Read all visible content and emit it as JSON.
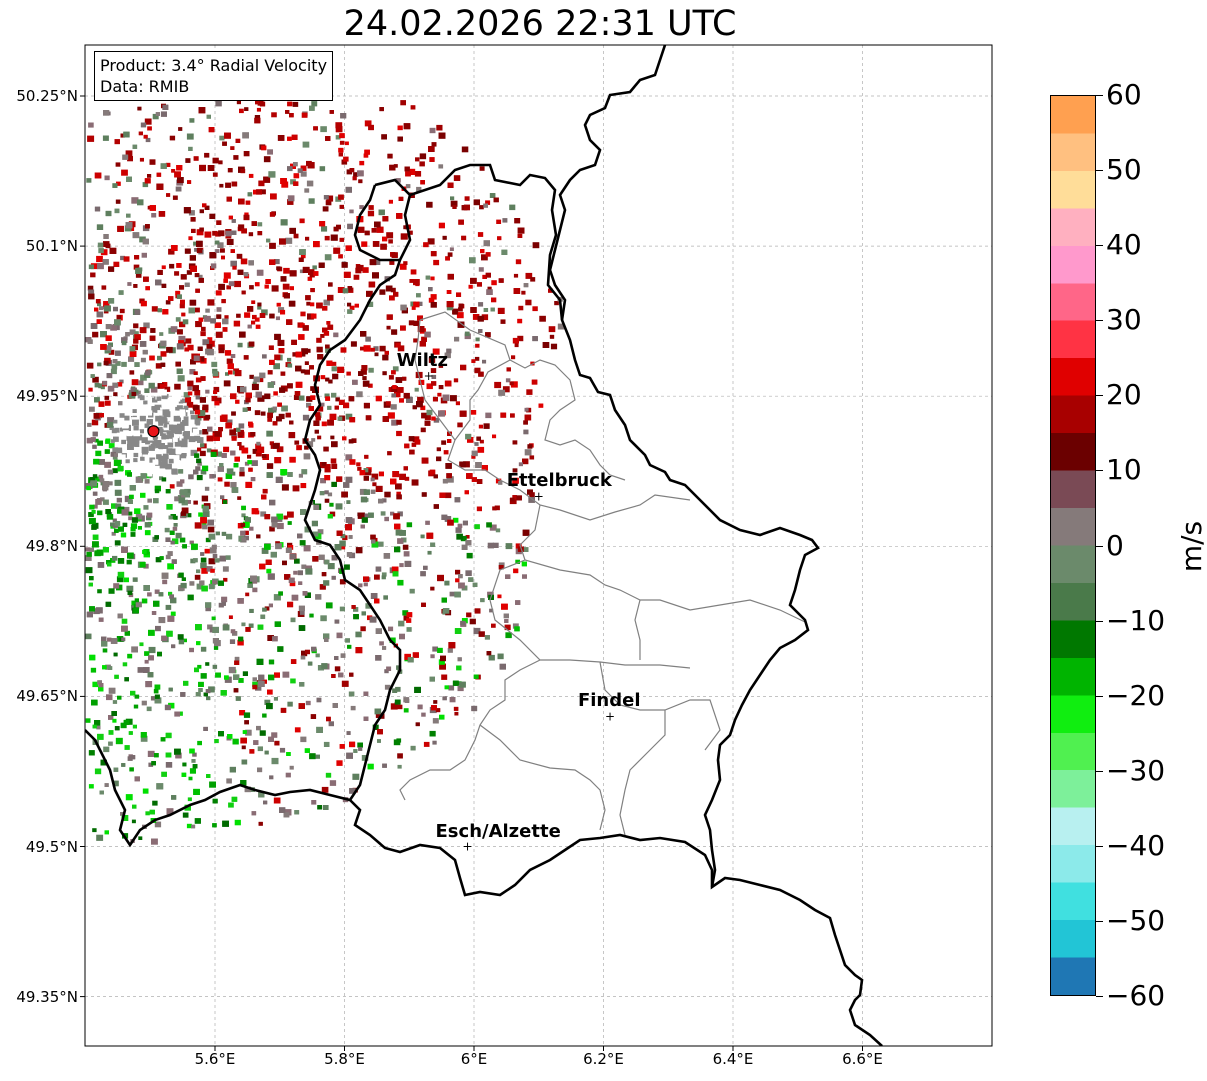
{
  "title": "24.02.2026 22:31 UTC",
  "info": {
    "product": "Product: 3.4° Radial Velocity",
    "data": "Data: RMIB"
  },
  "axes": {
    "x_ticks": [
      "5.6°E",
      "5.8°E",
      "6°E",
      "6.2°E",
      "6.4°E",
      "6.6°E"
    ],
    "y_ticks": [
      "50.25°N",
      "50.1°N",
      "49.95°N",
      "49.8°N",
      "49.65°N",
      "49.5°N",
      "49.35°N"
    ],
    "lon_range": [
      5.4,
      6.8
    ],
    "lat_range": [
      49.3,
      50.3
    ],
    "grid": true
  },
  "cities": [
    {
      "name": "Wiltz",
      "lon": 5.93,
      "lat": 49.97
    },
    {
      "name": "Ettelbruck",
      "lon": 6.1,
      "lat": 49.85
    },
    {
      "name": "Findel",
      "lon": 6.21,
      "lat": 49.63
    },
    {
      "name": "Esch/Alzette",
      "lon": 5.99,
      "lat": 49.5
    }
  ],
  "radar_site": {
    "lon": 5.505,
    "lat": 49.915,
    "color": "#e8161b"
  },
  "colorbar": {
    "unit": "m/s",
    "ticks": [
      "60",
      "50",
      "40",
      "30",
      "20",
      "10",
      "0",
      "−10",
      "−20",
      "−30",
      "−40",
      "−50",
      "−60"
    ],
    "range": [
      -60,
      60
    ],
    "colors": [
      "#1f77b4",
      "#22c5d6",
      "#40e0e0",
      "#8ceaea",
      "#b8f0f0",
      "#7df09a",
      "#50f050",
      "#10ee10",
      "#00b400",
      "#007800",
      "#4a7a4a",
      "#6b8a6b",
      "#857a7a",
      "#7a4a55",
      "#6b0000",
      "#a80000",
      "#e00000",
      "#ff3344",
      "#ff6688",
      "#ff99cc",
      "#ffb0c0",
      "#ffdd99",
      "#ffc080",
      "#ffa050"
    ]
  }
}
